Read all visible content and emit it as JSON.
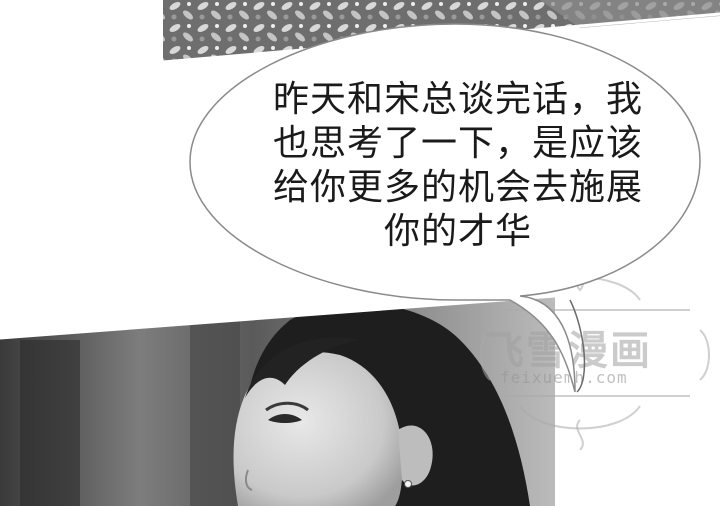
{
  "dialogue": {
    "line1": "昨天和宋总谈完话，我",
    "line2": "也思考了一下，是应该",
    "line3": "给你更多的机会去施展",
    "line4": "你的才华"
  },
  "watermark": {
    "title": "飞雪漫画",
    "url": "feixuemh.com"
  }
}
